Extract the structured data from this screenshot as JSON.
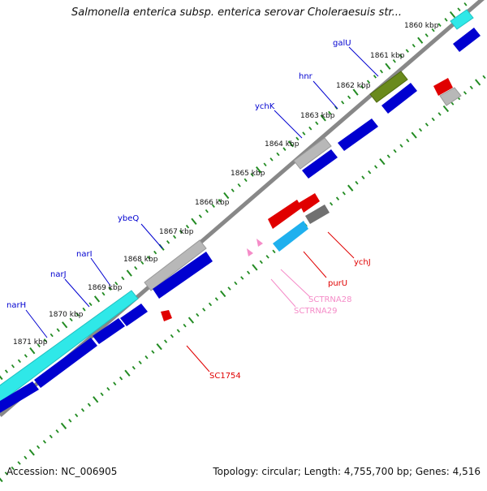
{
  "header": {
    "title": "Salmonella enterica subsp. enterica serovar Choleraesuis str..."
  },
  "footer": {
    "accession": "Accession: NC_006905",
    "summary": "Topology: circular; Length: 4,755,700 bp; Genes: 4,516"
  },
  "ruler": {
    "labels": [
      "1871 kbp",
      "1870 kbp",
      "1869 kbp",
      "1868 kbp",
      "1867 kbp",
      "1866 kbp",
      "1865 kbp",
      "1864 kbp",
      "1863 kbp",
      "1862 kbp",
      "1861 kbp",
      "1860 kbp"
    ]
  },
  "gene_labels_upper": [
    "narH",
    "narJ",
    "narI",
    "ybeQ",
    "ychK",
    "hnr",
    "galU"
  ],
  "gene_labels_lower": [
    "ychJ",
    "purU",
    "SCTRNA28",
    "SCTRNA29",
    "SC1754"
  ],
  "colors": {
    "blue": "#0000d0",
    "cyan": "#2fe8e8",
    "lightblue": "#1fb0ee",
    "gray": "#b8b8b8",
    "darkgray": "#707070",
    "olive": "#6a8a1c",
    "red": "#e00000",
    "pink": "#f58cc8",
    "green": "#228b22",
    "backbone": "#888888"
  }
}
